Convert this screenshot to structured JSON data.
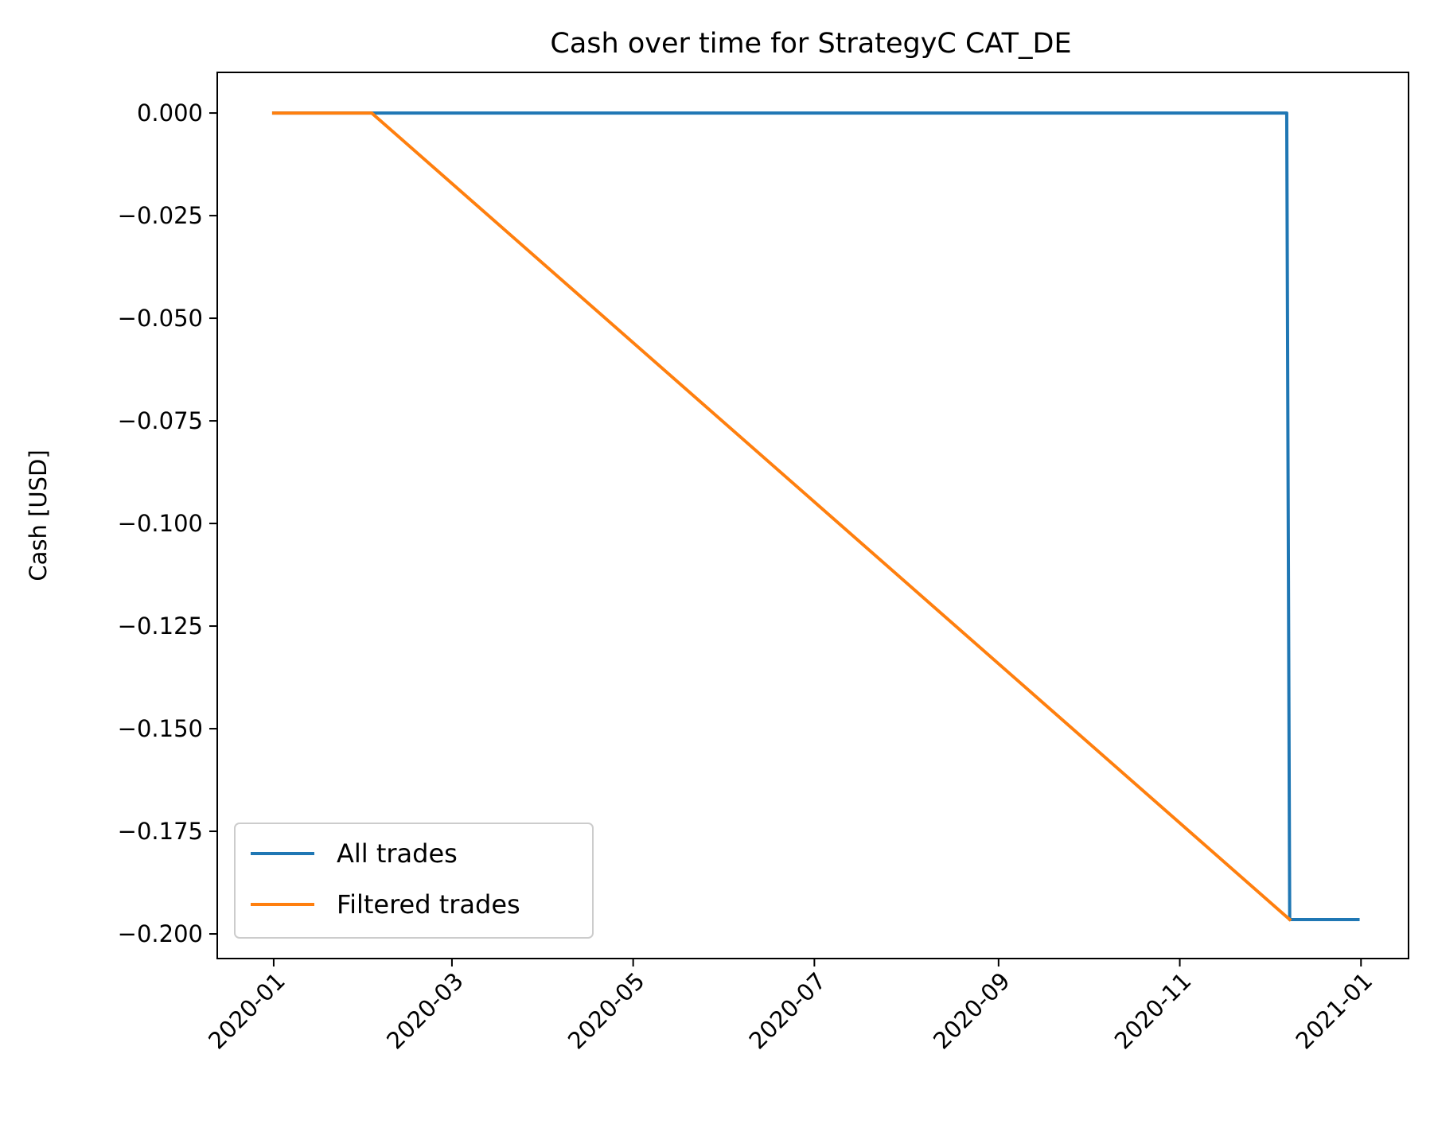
{
  "chart_data": {
    "type": "line",
    "title": "Cash over time for StrategyC CAT_DE",
    "xlabel": "",
    "ylabel": "Cash [USD]",
    "x_range": [
      "2019-12-13",
      "2021-01-17"
    ],
    "ylim": [
      -0.206,
      0.0099
    ],
    "x_ticks": [
      {
        "date": "2020-01-01",
        "label": "2020-01"
      },
      {
        "date": "2020-03-01",
        "label": "2020-03"
      },
      {
        "date": "2020-05-01",
        "label": "2020-05"
      },
      {
        "date": "2020-07-01",
        "label": "2020-07"
      },
      {
        "date": "2020-09-01",
        "label": "2020-09"
      },
      {
        "date": "2020-11-01",
        "label": "2020-11"
      },
      {
        "date": "2021-01-01",
        "label": "2021-01"
      }
    ],
    "y_ticks": [
      {
        "value": 0.0,
        "label": "0.000"
      },
      {
        "value": -0.025,
        "label": "−0.025"
      },
      {
        "value": -0.05,
        "label": "−0.050"
      },
      {
        "value": -0.075,
        "label": "−0.075"
      },
      {
        "value": -0.1,
        "label": "−0.100"
      },
      {
        "value": -0.125,
        "label": "−0.125"
      },
      {
        "value": -0.15,
        "label": "−0.150"
      },
      {
        "value": -0.175,
        "label": "−0.175"
      },
      {
        "value": -0.2,
        "label": "−0.200"
      }
    ],
    "series": [
      {
        "name": "All trades",
        "color": "#1f77b4",
        "points": [
          {
            "x": "2020-01-01",
            "y": 0.0
          },
          {
            "x": "2020-12-07",
            "y": 0.0
          },
          {
            "x": "2020-12-08",
            "y": -0.1965
          },
          {
            "x": "2020-12-31",
            "y": -0.1965
          }
        ]
      },
      {
        "name": "Filtered trades",
        "color": "#ff7f0e",
        "points": [
          {
            "x": "2020-01-01",
            "y": 0.0
          },
          {
            "x": "2020-02-03",
            "y": 0.0
          },
          {
            "x": "2020-12-08",
            "y": -0.1965
          }
        ]
      }
    ],
    "legend": {
      "position": "lower-left"
    },
    "grid": false
  }
}
